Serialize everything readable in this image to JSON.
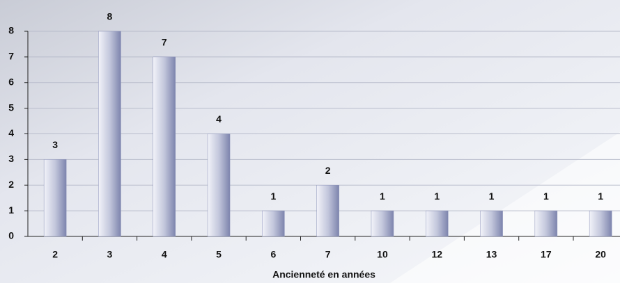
{
  "chart_data": {
    "type": "bar",
    "x_label": "Ancienneté en années",
    "categories": [
      "2",
      "3",
      "4",
      "5",
      "6",
      "7",
      "10",
      "12",
      "13",
      "17",
      "20"
    ],
    "values": [
      3,
      8,
      7,
      4,
      1,
      2,
      1,
      1,
      1,
      1,
      1
    ],
    "color": "#8a91b8",
    "ylim": [
      0,
      8
    ],
    "yticks": [
      0,
      1,
      2,
      3,
      4,
      5,
      6,
      7,
      8
    ],
    "grid": true
  }
}
